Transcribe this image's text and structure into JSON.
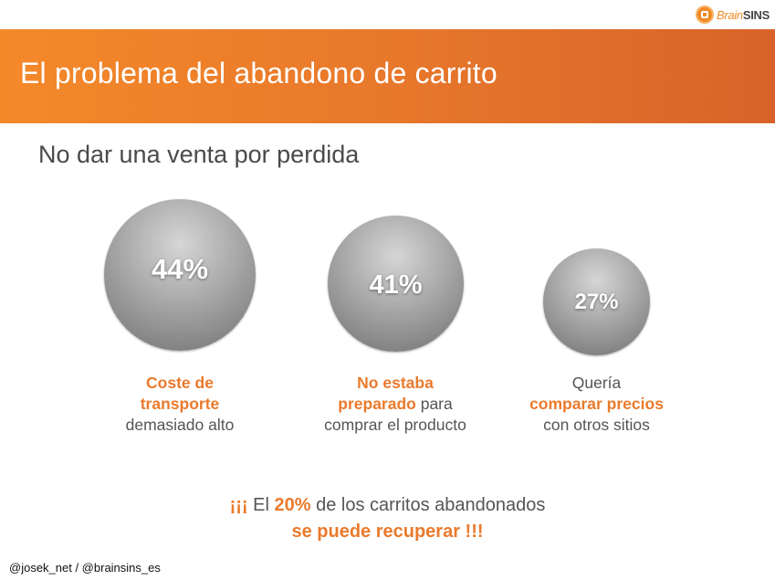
{
  "logo": {
    "brain": "Brain",
    "sins": "SINS"
  },
  "slide": {
    "title": "El problema del abandono de carrito",
    "subtitle": "No dar una venta por perdida"
  },
  "stats": [
    {
      "value": "44%",
      "level": 44,
      "caption": {
        "l1_hl": "Coste de",
        "l2_hl": "transporte",
        "l3": "demasiado alto"
      }
    },
    {
      "value": "41%",
      "level": 41,
      "caption": {
        "l1_hl": "No estaba",
        "l2_hl": "preparado",
        "l2_rest": " para",
        "l3": "comprar el producto"
      }
    },
    {
      "value": "27%",
      "level": 27,
      "caption": {
        "l1": "Quería",
        "l2_hl": "comparar precios",
        "l3": "con otros sitios"
      }
    }
  ],
  "footer": {
    "open": "¡¡¡",
    "pre": " El ",
    "pct": "20%",
    "post": " de los carritos abandonados",
    "line2": "se puede recuperar !!!"
  },
  "handle": "@josek_net / @brainsins_es",
  "colors": {
    "accent": "#ea7a2c",
    "banner_start": "#f4892a",
    "banner_end": "#d8632a",
    "bubble": "#a8a8a8"
  }
}
